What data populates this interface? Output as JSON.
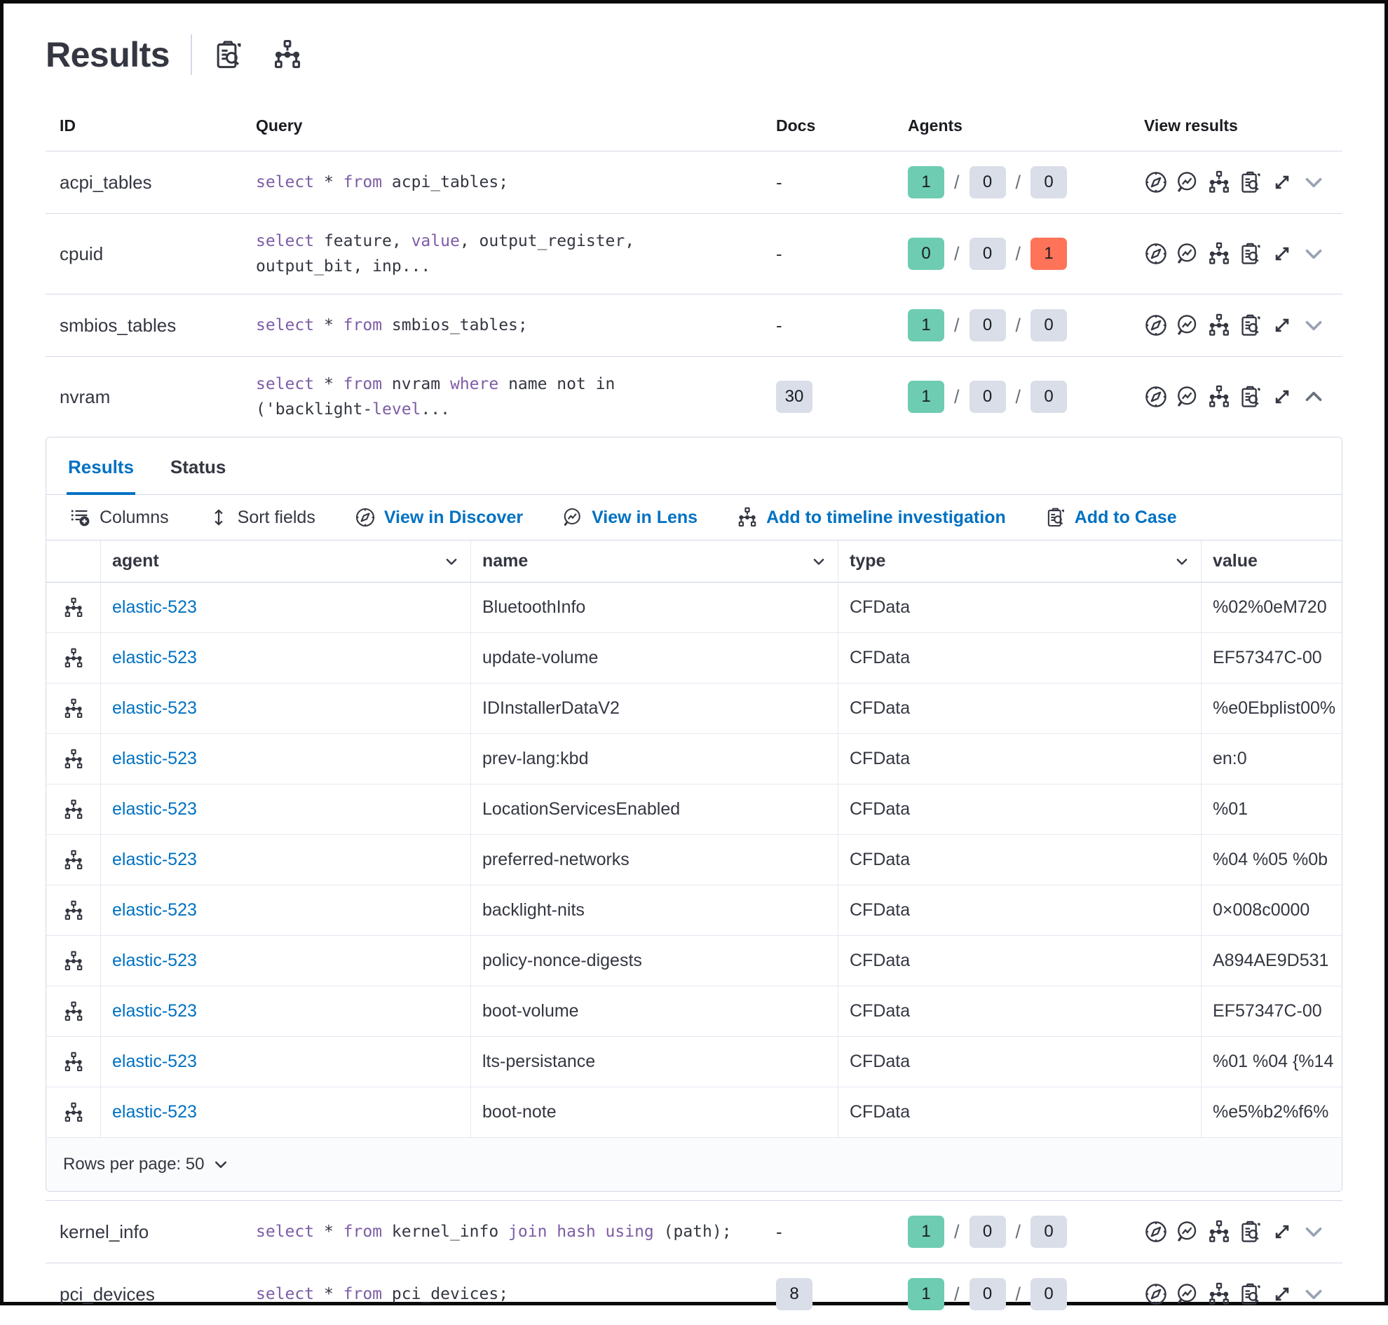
{
  "page": {
    "title": "Results"
  },
  "title_actions": [
    {
      "icon": "inspect-case-icon"
    },
    {
      "icon": "timeline-icon"
    }
  ],
  "colors": {
    "primary_blue": "#0071C2",
    "success_green": "#6DCCB1",
    "danger_red": "#FF7359",
    "badge_grey": "#D9DEE8",
    "keyword_purple": "#7D5CA6",
    "text": "#343741",
    "border": "#D3DAE6"
  },
  "outer_table": {
    "headers": {
      "id": "ID",
      "query": "Query",
      "docs": "Docs",
      "agents": "Agents",
      "view_results": "View results"
    },
    "view_icons": [
      "discover-icon",
      "lens-icon",
      "timeline-icon",
      "case-icon",
      "expand-icon"
    ],
    "rows": [
      {
        "id": "acpi_tables",
        "query": [
          [
            "k",
            "select"
          ],
          [
            "t",
            " * "
          ],
          [
            "k",
            "from"
          ],
          [
            "t",
            " acpi_tables;"
          ]
        ],
        "docs": "-",
        "docs_badge": false,
        "agents": {
          "success": "1",
          "pending": "0",
          "failed": "0",
          "failed_red": false
        },
        "expanded": false
      },
      {
        "id": "cpuid",
        "query": [
          [
            "k",
            "select"
          ],
          [
            "t",
            " feature, "
          ],
          [
            "k",
            "value"
          ],
          [
            "t",
            ", output_register,\noutput_bit, inp..."
          ]
        ],
        "docs": "-",
        "docs_badge": false,
        "agents": {
          "success": "0",
          "pending": "0",
          "failed": "1",
          "failed_red": true
        },
        "expanded": false
      },
      {
        "id": "smbios_tables",
        "query": [
          [
            "k",
            "select"
          ],
          [
            "t",
            " * "
          ],
          [
            "k",
            "from"
          ],
          [
            "t",
            " smbios_tables;"
          ]
        ],
        "docs": "-",
        "docs_badge": false,
        "agents": {
          "success": "1",
          "pending": "0",
          "failed": "0",
          "failed_red": false
        },
        "expanded": false
      },
      {
        "id": "nvram",
        "query": [
          [
            "k",
            "select"
          ],
          [
            "t",
            " * "
          ],
          [
            "k",
            "from"
          ],
          [
            "t",
            " nvram "
          ],
          [
            "k",
            "where"
          ],
          [
            "t",
            " name not in\n('backlight-"
          ],
          [
            "k",
            "level"
          ],
          [
            "t",
            "..."
          ]
        ],
        "docs": "30",
        "docs_badge": true,
        "agents": {
          "success": "1",
          "pending": "0",
          "failed": "0",
          "failed_red": false
        },
        "expanded": true
      },
      {
        "id": "kernel_info",
        "query": [
          [
            "k",
            "select"
          ],
          [
            "t",
            " * "
          ],
          [
            "k",
            "from"
          ],
          [
            "t",
            " kernel_info "
          ],
          [
            "k",
            "join"
          ],
          [
            "t",
            " "
          ],
          [
            "k",
            "hash"
          ],
          [
            "t",
            " "
          ],
          [
            "k",
            "using"
          ],
          [
            "t",
            " (path);"
          ]
        ],
        "docs": "-",
        "docs_badge": false,
        "agents": {
          "success": "1",
          "pending": "0",
          "failed": "0",
          "failed_red": false
        },
        "expanded": false
      },
      {
        "id": "pci_devices",
        "query": [
          [
            "k",
            "select"
          ],
          [
            "t",
            " * "
          ],
          [
            "k",
            "from"
          ],
          [
            "t",
            " pci_devices;"
          ]
        ],
        "docs": "8",
        "docs_badge": true,
        "agents": {
          "success": "1",
          "pending": "0",
          "failed": "0",
          "failed_red": false
        },
        "expanded": false
      }
    ]
  },
  "results_panel": {
    "tabs": [
      {
        "label": "Results",
        "active": true
      },
      {
        "label": "Status",
        "active": false
      }
    ],
    "toolbar": [
      {
        "icon": "columns-icon",
        "label": "Columns",
        "style": "dark"
      },
      {
        "icon": "sort-icon",
        "label": "Sort fields",
        "style": "dark"
      },
      {
        "icon": "discover-icon",
        "label": "View in Discover",
        "style": "blue"
      },
      {
        "icon": "lens-icon",
        "label": "View in Lens",
        "style": "blue"
      },
      {
        "icon": "timeline-icon",
        "label": "Add to timeline investigation",
        "style": "blue"
      },
      {
        "icon": "case-icon",
        "label": "Add to Case",
        "style": "blue"
      }
    ],
    "grid": {
      "columns": [
        {
          "key": "agent",
          "label": "agent",
          "sortable": true
        },
        {
          "key": "name",
          "label": "name",
          "sortable": true
        },
        {
          "key": "type",
          "label": "type",
          "sortable": true
        },
        {
          "key": "value",
          "label": "value",
          "sortable": false
        }
      ],
      "row_icon": "timeline-icon",
      "rows": [
        {
          "agent": "elastic-523",
          "name": "BluetoothInfo",
          "type": "CFData",
          "value": "%02%0eM720"
        },
        {
          "agent": "elastic-523",
          "name": "update-volume",
          "type": "CFData",
          "value": "EF57347C-00"
        },
        {
          "agent": "elastic-523",
          "name": "IDInstallerDataV2",
          "type": "CFData",
          "value": "%e0Ebplist00%"
        },
        {
          "agent": "elastic-523",
          "name": "prev-lang:kbd",
          "type": "CFData",
          "value": "en:0"
        },
        {
          "agent": "elastic-523",
          "name": "LocationServicesEnabled",
          "type": "CFData",
          "value": "%01"
        },
        {
          "agent": "elastic-523",
          "name": "preferred-networks",
          "type": "CFData",
          "value": "%04 %05 %0b"
        },
        {
          "agent": "elastic-523",
          "name": "backlight-nits",
          "type": "CFData",
          "value": "0×008c0000"
        },
        {
          "agent": "elastic-523",
          "name": "policy-nonce-digests",
          "type": "CFData",
          "value": "A894AE9D531"
        },
        {
          "agent": "elastic-523",
          "name": "boot-volume",
          "type": "CFData",
          "value": "EF57347C-00"
        },
        {
          "agent": "elastic-523",
          "name": "lts-persistance",
          "type": "CFData",
          "value": "%01 %04 {%14"
        },
        {
          "agent": "elastic-523",
          "name": "boot-note",
          "type": "CFData",
          "value": "%e5%b2%f6%"
        }
      ]
    },
    "footer": {
      "rows_per_page_label": "Rows per page: 50"
    }
  }
}
